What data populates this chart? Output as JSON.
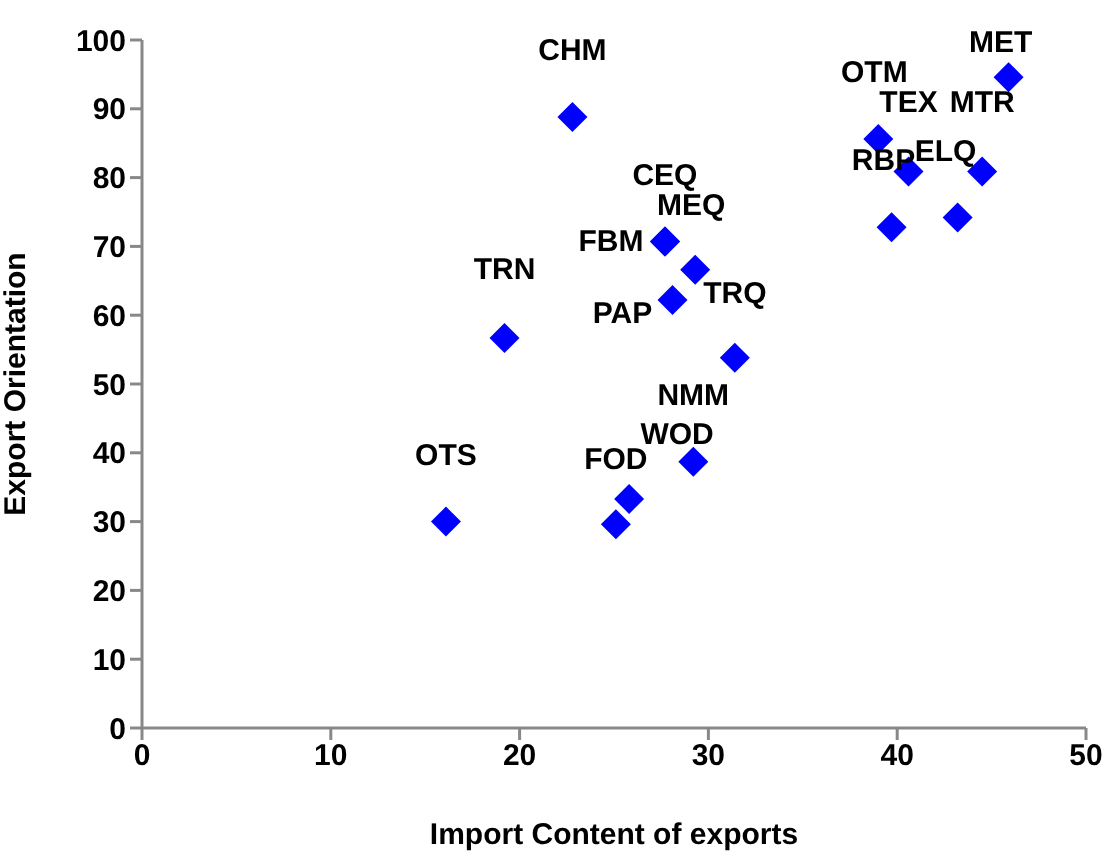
{
  "chart_data": {
    "type": "scatter",
    "xlabel": "Import Content of exports",
    "ylabel": "Export Orientation",
    "x": [
      16.1,
      19.2,
      22.8,
      25.1,
      25.8,
      27.7,
      27.7,
      29.3,
      28.1,
      31.4,
      29.2,
      39.0,
      40.6,
      44.5,
      39.7,
      43.2,
      45.9
    ],
    "values": [
      30.0,
      56.7,
      88.8,
      29.6,
      33.3,
      70.7,
      70.7,
      66.6,
      62.2,
      53.8,
      38.7,
      85.6,
      80.9,
      80.9,
      72.8,
      74.2,
      94.6
    ],
    "value_labels": [
      "OTS",
      "TRN",
      "CHM",
      "FOD",
      "WOD",
      "CEQ",
      "FBM",
      "MEQ",
      "PAP",
      "TRQ",
      "NMM",
      "OTM",
      "TEX",
      "MTR",
      "RBP",
      "ELQ",
      "MET"
    ],
    "color": "#0000ff",
    "marker": "diamond",
    "grid": false,
    "legend": false,
    "xlim": [
      0,
      50
    ],
    "xticks": [
      0,
      10,
      20,
      30,
      40,
      50
    ],
    "ylim": [
      0,
      100
    ],
    "yticks": [
      0,
      10,
      20,
      30,
      40,
      50,
      60,
      70,
      80,
      90,
      100
    ]
  }
}
